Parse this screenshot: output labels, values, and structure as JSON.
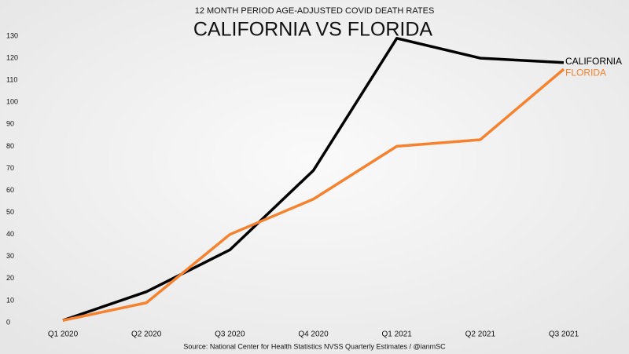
{
  "chart_data": {
    "type": "line",
    "subtitle": "12 MONTH PERIOD AGE-ADJUSTED COVID DEATH RATES",
    "title": "CALIFORNIA VS FLORIDA",
    "source": "Source: National Center for Health Statistics NVSS Quarterly Estimates / @ianmSC",
    "categories": [
      "Q1 2020",
      "Q2 2020",
      "Q3 2020",
      "Q4 2020",
      "Q1 2021",
      "Q2 2021",
      "Q3 2021"
    ],
    "series": [
      {
        "name": "CALIFORNIA",
        "color": "#000000",
        "values": [
          1,
          14,
          33,
          69,
          129,
          120,
          118
        ]
      },
      {
        "name": "FLORIDA",
        "color": "#f5822f",
        "values": [
          1,
          9,
          40,
          56,
          80,
          83,
          115
        ]
      }
    ],
    "ylim": [
      0,
      130
    ],
    "yticks": [
      0,
      10,
      20,
      30,
      40,
      50,
      60,
      70,
      80,
      90,
      100,
      110,
      120,
      130
    ],
    "grid": false
  }
}
